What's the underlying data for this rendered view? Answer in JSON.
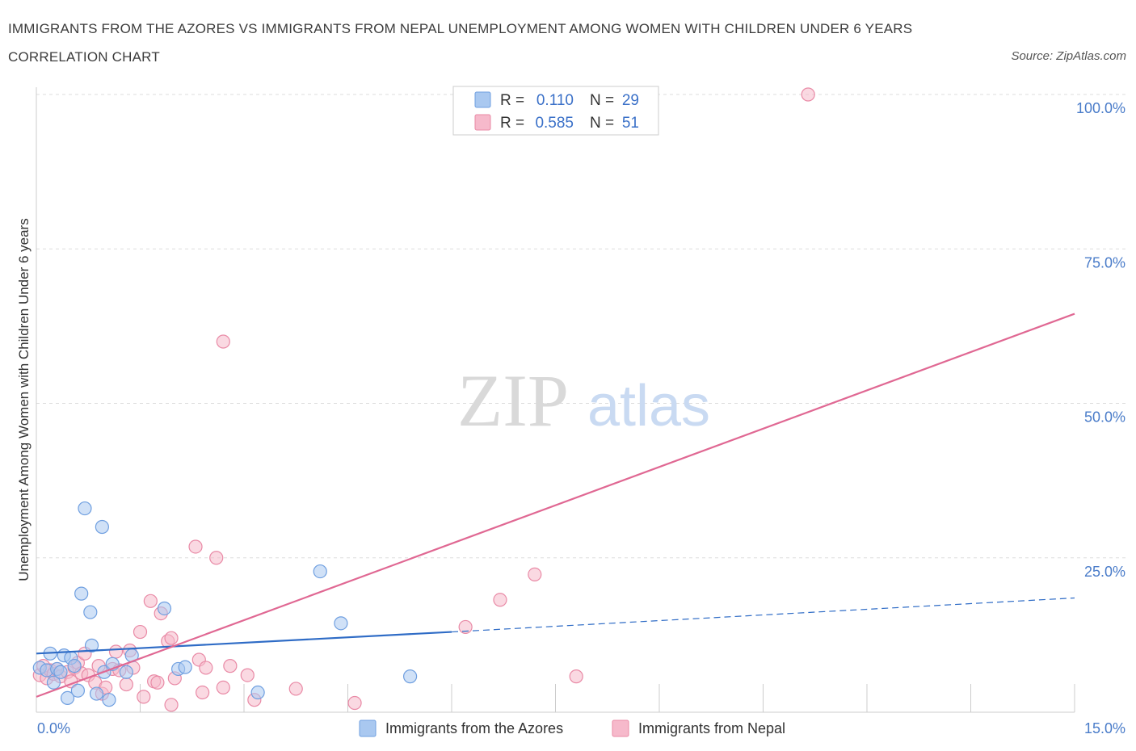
{
  "title": "IMMIGRANTS FROM THE AZORES VS IMMIGRANTS FROM NEPAL UNEMPLOYMENT AMONG WOMEN WITH CHILDREN UNDER 6 YEARS CORRELATION CHART",
  "source": "Source: ZipAtlas.com",
  "watermark": {
    "zip": "ZIP",
    "atlas": "atlas"
  },
  "colors": {
    "azores_fill": "#a9c8f0",
    "azores_stroke": "#6f9fe0",
    "azores_line": "#2f6cc6",
    "nepal_fill": "#f6b9cb",
    "nepal_stroke": "#e98aa6",
    "nepal_line": "#e06893",
    "tick_color": "#4a7cc9"
  },
  "chart_data": {
    "type": "scatter",
    "xlabel": "",
    "ylabel": "Unemployment Among Women with Children Under 6 years",
    "xlim": [
      0,
      15
    ],
    "ylim": [
      0,
      100
    ],
    "x_tick_labels": [
      "0.0%",
      "15.0%"
    ],
    "y_ticks": [
      {
        "value": 100,
        "label": "100.0%"
      },
      {
        "value": 75,
        "label": "75.0%"
      },
      {
        "value": 50,
        "label": "50.0%"
      },
      {
        "value": 25,
        "label": "25.0%"
      }
    ],
    "legend": {
      "r_label": "R =",
      "n_label": "N =",
      "entries": [
        {
          "series": "azores",
          "r": "0.110",
          "n": "29"
        },
        {
          "series": "nepal",
          "r": "0.585",
          "n": "51"
        }
      ]
    },
    "series": [
      {
        "name": "Immigrants from the Azores",
        "key": "azores",
        "trend": {
          "x0": 0,
          "y0": 9.5,
          "x1": 6.0,
          "y1": 13.0,
          "dash_to_x": 15,
          "dash_to_y": 18.5
        },
        "points": [
          [
            0.05,
            7.2
          ],
          [
            0.15,
            6.8
          ],
          [
            0.2,
            9.5
          ],
          [
            0.25,
            4.8
          ],
          [
            0.3,
            7.0
          ],
          [
            0.35,
            6.5
          ],
          [
            0.4,
            9.2
          ],
          [
            0.45,
            2.3
          ],
          [
            0.5,
            8.8
          ],
          [
            0.55,
            7.5
          ],
          [
            0.6,
            3.5
          ],
          [
            0.65,
            19.2
          ],
          [
            0.7,
            33.0
          ],
          [
            0.78,
            16.2
          ],
          [
            0.8,
            10.8
          ],
          [
            0.87,
            3.0
          ],
          [
            0.95,
            30.0
          ],
          [
            0.98,
            6.5
          ],
          [
            1.05,
            2.0
          ],
          [
            1.1,
            7.8
          ],
          [
            1.3,
            6.5
          ],
          [
            1.38,
            9.2
          ],
          [
            1.85,
            16.8
          ],
          [
            2.05,
            7.0
          ],
          [
            2.15,
            7.3
          ],
          [
            3.2,
            3.2
          ],
          [
            4.1,
            22.8
          ],
          [
            4.4,
            14.4
          ],
          [
            5.4,
            5.8
          ]
        ]
      },
      {
        "name": "Immigrants from Nepal",
        "key": "nepal",
        "trend": {
          "x0": 0,
          "y0": 2.5,
          "x1": 15,
          "y1": 64.5
        },
        "points": [
          [
            0.05,
            6.0
          ],
          [
            0.1,
            7.5
          ],
          [
            0.15,
            5.5
          ],
          [
            0.2,
            6.8
          ],
          [
            0.25,
            6.2
          ],
          [
            0.3,
            7.0
          ],
          [
            0.35,
            5.8
          ],
          [
            0.45,
            6.5
          ],
          [
            0.5,
            5.0
          ],
          [
            0.55,
            7.2
          ],
          [
            0.6,
            8.0
          ],
          [
            0.65,
            6.3
          ],
          [
            0.7,
            9.5
          ],
          [
            0.75,
            6.0
          ],
          [
            0.85,
            4.8
          ],
          [
            0.9,
            7.5
          ],
          [
            0.95,
            3.0
          ],
          [
            1.0,
            4.0
          ],
          [
            1.1,
            7.0
          ],
          [
            1.15,
            9.8
          ],
          [
            1.2,
            6.8
          ],
          [
            1.3,
            4.5
          ],
          [
            1.35,
            10.0
          ],
          [
            1.4,
            7.2
          ],
          [
            1.5,
            13.0
          ],
          [
            1.55,
            2.5
          ],
          [
            1.65,
            18.0
          ],
          [
            1.7,
            5.0
          ],
          [
            1.75,
            4.8
          ],
          [
            1.8,
            16.0
          ],
          [
            1.9,
            11.5
          ],
          [
            1.95,
            12.0
          ],
          [
            1.95,
            1.2
          ],
          [
            2.0,
            5.5
          ],
          [
            2.3,
            26.8
          ],
          [
            2.35,
            8.5
          ],
          [
            2.4,
            3.2
          ],
          [
            2.45,
            7.2
          ],
          [
            2.6,
            25.0
          ],
          [
            2.7,
            4.0
          ],
          [
            2.7,
            60.0
          ],
          [
            2.8,
            7.5
          ],
          [
            3.05,
            6.0
          ],
          [
            3.15,
            2.0
          ],
          [
            3.75,
            3.8
          ],
          [
            4.6,
            1.5
          ],
          [
            6.2,
            13.8
          ],
          [
            6.7,
            18.2
          ],
          [
            7.2,
            22.3
          ],
          [
            7.8,
            5.8
          ],
          [
            11.15,
            100.0
          ]
        ]
      }
    ]
  }
}
